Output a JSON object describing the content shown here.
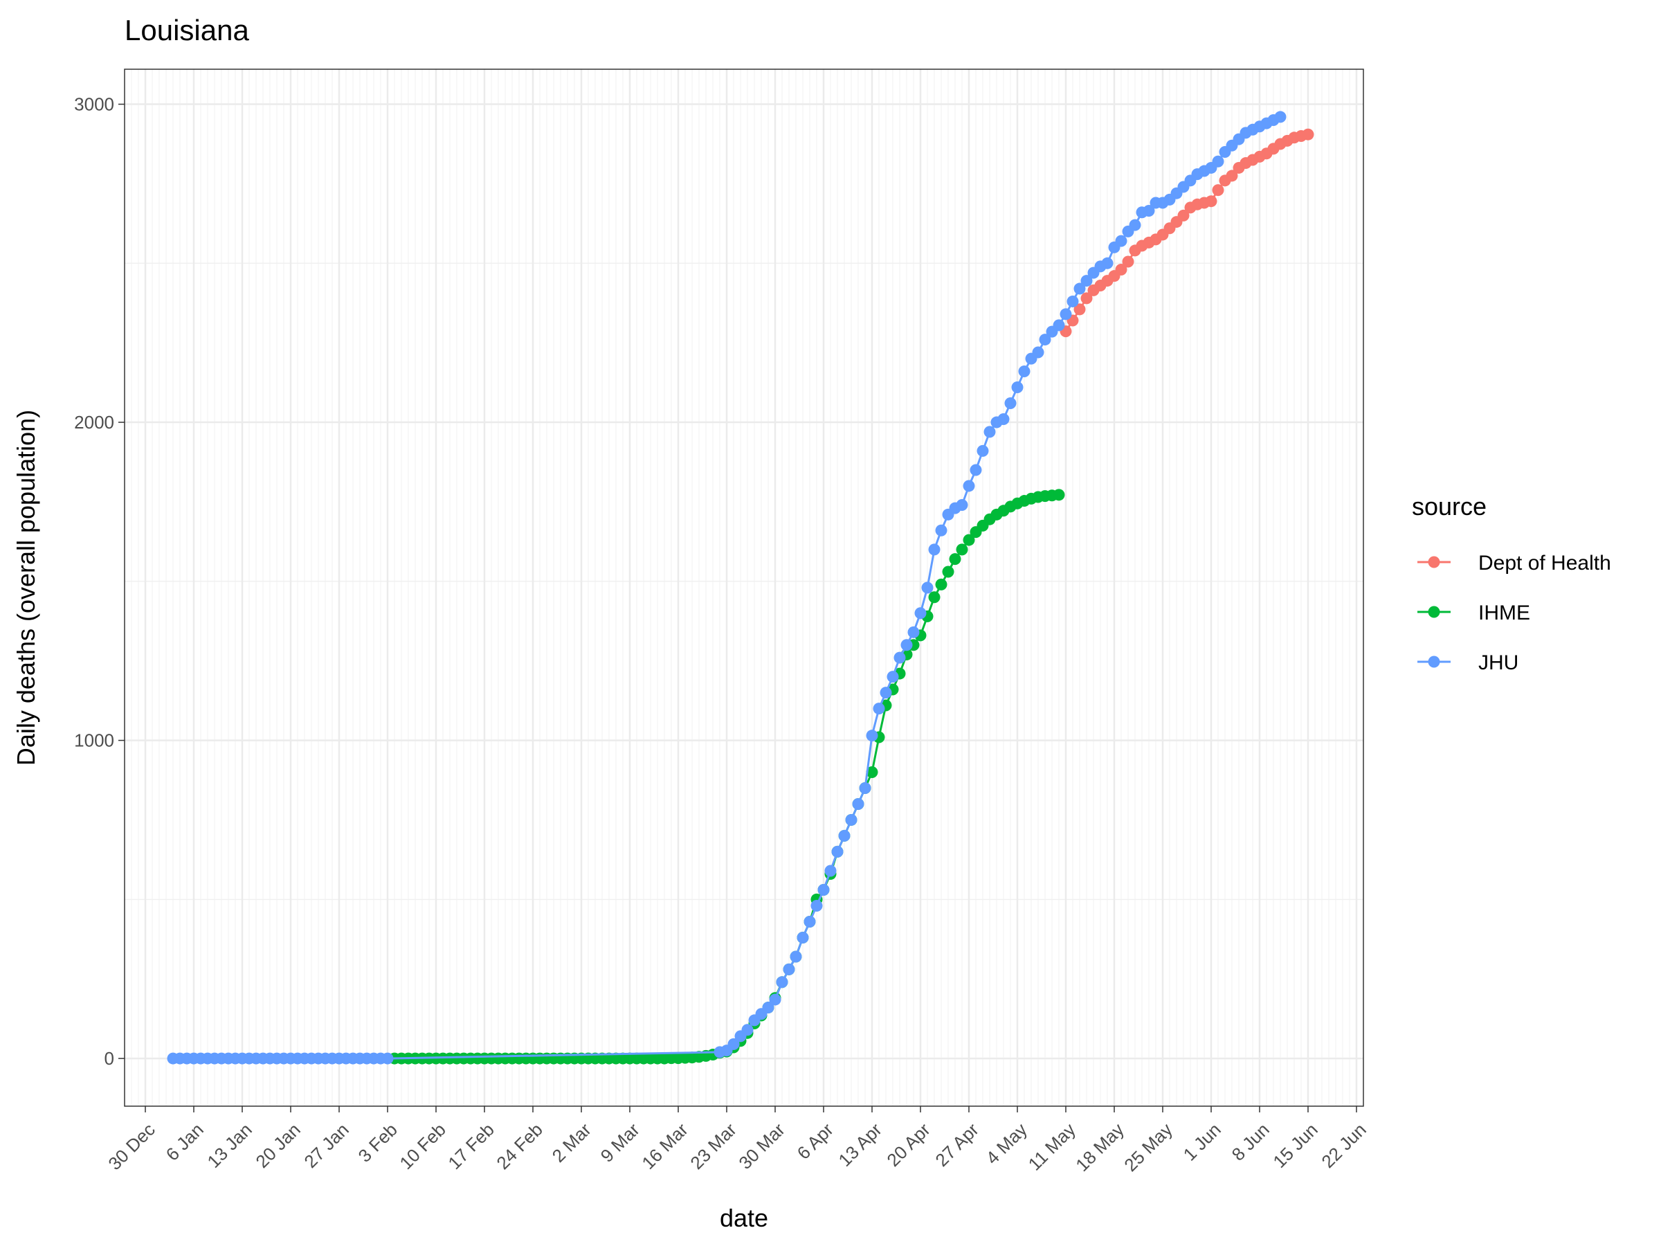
{
  "chart_data": {
    "type": "line",
    "title": "Louisiana",
    "xlabel": "date",
    "ylabel": "Daily deaths (overall population)",
    "x_tick_labels": [
      "30 Dec",
      "6 Jan",
      "13 Jan",
      "20 Jan",
      "27 Jan",
      "3 Feb",
      "10 Feb",
      "17 Feb",
      "24 Feb",
      "2 Mar",
      "9 Mar",
      "16 Mar",
      "23 Mar",
      "30 Mar",
      "6 Apr",
      "13 Apr",
      "20 Apr",
      "27 Apr",
      "4 May",
      "11 May",
      "18 May",
      "25 May",
      "1 Jun",
      "8 Jun",
      "15 Jun",
      "22 Jun"
    ],
    "x_tick_dates": [
      "2019-12-30",
      "2020-01-06",
      "2020-01-13",
      "2020-01-20",
      "2020-01-27",
      "2020-02-03",
      "2020-02-10",
      "2020-02-17",
      "2020-02-24",
      "2020-03-02",
      "2020-03-09",
      "2020-03-16",
      "2020-03-23",
      "2020-03-30",
      "2020-04-06",
      "2020-04-13",
      "2020-04-20",
      "2020-04-27",
      "2020-05-04",
      "2020-05-11",
      "2020-05-18",
      "2020-05-25",
      "2020-06-01",
      "2020-06-08",
      "2020-06-15",
      "2020-06-22"
    ],
    "xlim": [
      "2019-12-27",
      "2020-06-23"
    ],
    "y_ticks": [
      0,
      1000,
      2000,
      3000
    ],
    "ylim": [
      -150,
      3110
    ],
    "grid": true,
    "legend": {
      "title": "source",
      "position": "right"
    },
    "series": [
      {
        "name": "Dept of Health",
        "color": "#F8766D",
        "x": [
          "2020-05-11",
          "2020-05-12",
          "2020-05-13",
          "2020-05-14",
          "2020-05-15",
          "2020-05-16",
          "2020-05-17",
          "2020-05-18",
          "2020-05-19",
          "2020-05-20",
          "2020-05-21",
          "2020-05-22",
          "2020-05-23",
          "2020-05-24",
          "2020-05-25",
          "2020-05-26",
          "2020-05-27",
          "2020-05-28",
          "2020-05-29",
          "2020-05-30",
          "2020-05-31",
          "2020-06-01",
          "2020-06-02",
          "2020-06-03",
          "2020-06-04",
          "2020-06-05",
          "2020-06-06",
          "2020-06-07",
          "2020-06-08",
          "2020-06-09",
          "2020-06-10",
          "2020-06-11",
          "2020-06-12",
          "2020-06-13",
          "2020-06-14",
          "2020-06-15"
        ],
        "values": [
          2286,
          2320,
          2355,
          2390,
          2415,
          2430,
          2445,
          2460,
          2480,
          2505,
          2540,
          2555,
          2565,
          2575,
          2590,
          2610,
          2630,
          2650,
          2675,
          2685,
          2690,
          2695,
          2730,
          2760,
          2775,
          2800,
          2815,
          2825,
          2835,
          2845,
          2860,
          2875,
          2885,
          2895,
          2900,
          2905
        ]
      },
      {
        "name": "IHME",
        "color": "#00BA38",
        "x": [
          "2020-02-04",
          "2020-02-05",
          "2020-02-06",
          "2020-02-07",
          "2020-02-08",
          "2020-02-09",
          "2020-02-10",
          "2020-02-11",
          "2020-02-12",
          "2020-02-13",
          "2020-02-14",
          "2020-02-15",
          "2020-02-16",
          "2020-02-17",
          "2020-02-18",
          "2020-02-19",
          "2020-02-20",
          "2020-02-21",
          "2020-02-22",
          "2020-02-23",
          "2020-02-24",
          "2020-02-25",
          "2020-02-26",
          "2020-02-27",
          "2020-02-28",
          "2020-02-29",
          "2020-03-01",
          "2020-03-02",
          "2020-03-03",
          "2020-03-04",
          "2020-03-05",
          "2020-03-06",
          "2020-03-07",
          "2020-03-08",
          "2020-03-09",
          "2020-03-10",
          "2020-03-11",
          "2020-03-12",
          "2020-03-13",
          "2020-03-14",
          "2020-03-15",
          "2020-03-16",
          "2020-03-17",
          "2020-03-18",
          "2020-03-19",
          "2020-03-20",
          "2020-03-21",
          "2020-03-22",
          "2020-03-23",
          "2020-03-24",
          "2020-03-25",
          "2020-03-26",
          "2020-03-27",
          "2020-03-28",
          "2020-03-29",
          "2020-03-30",
          "2020-03-31",
          "2020-04-01",
          "2020-04-02",
          "2020-04-03",
          "2020-04-04",
          "2020-04-05",
          "2020-04-06",
          "2020-04-07",
          "2020-04-08",
          "2020-04-09",
          "2020-04-10",
          "2020-04-11",
          "2020-04-12",
          "2020-04-13",
          "2020-04-14",
          "2020-04-15",
          "2020-04-16",
          "2020-04-17",
          "2020-04-18",
          "2020-04-19",
          "2020-04-20",
          "2020-04-21",
          "2020-04-22",
          "2020-04-23",
          "2020-04-24",
          "2020-04-25",
          "2020-04-26",
          "2020-04-27",
          "2020-04-28",
          "2020-04-29",
          "2020-04-30",
          "2020-05-01",
          "2020-05-02",
          "2020-05-03",
          "2020-05-04",
          "2020-05-05",
          "2020-05-06",
          "2020-05-07",
          "2020-05-08",
          "2020-05-09",
          "2020-05-10"
        ],
        "values": [
          0,
          0,
          0,
          0,
          0,
          0,
          0,
          0,
          0,
          0,
          0,
          0,
          0,
          0,
          0,
          0,
          0,
          0,
          0,
          0,
          0,
          0,
          0,
          0,
          0,
          0,
          0,
          0,
          0,
          0,
          0,
          0,
          0,
          0,
          0,
          0,
          0,
          0,
          0,
          0,
          1,
          1,
          2,
          3,
          5,
          8,
          12,
          18,
          22,
          35,
          55,
          80,
          110,
          135,
          160,
          190,
          240,
          280,
          320,
          380,
          430,
          500,
          530,
          580,
          650,
          700,
          750,
          800,
          850,
          900,
          1010,
          1110,
          1160,
          1210,
          1270,
          1300,
          1330,
          1390,
          1450,
          1490,
          1530,
          1570,
          1600,
          1630,
          1655,
          1675,
          1695,
          1710,
          1722,
          1735,
          1745,
          1753,
          1760,
          1765,
          1768,
          1770,
          1772
        ]
      },
      {
        "name": "JHU",
        "color": "#619CFF",
        "x": [
          "2020-01-03",
          "2020-01-04",
          "2020-01-05",
          "2020-01-06",
          "2020-01-07",
          "2020-01-08",
          "2020-01-09",
          "2020-01-10",
          "2020-01-11",
          "2020-01-12",
          "2020-01-13",
          "2020-01-14",
          "2020-01-15",
          "2020-01-16",
          "2020-01-17",
          "2020-01-18",
          "2020-01-19",
          "2020-01-20",
          "2020-01-21",
          "2020-01-22",
          "2020-01-23",
          "2020-01-24",
          "2020-01-25",
          "2020-01-26",
          "2020-01-27",
          "2020-01-28",
          "2020-01-29",
          "2020-01-30",
          "2020-01-31",
          "2020-02-01",
          "2020-02-02",
          "2020-02-03",
          "2020-03-22",
          "2020-03-23",
          "2020-03-24",
          "2020-03-25",
          "2020-03-26",
          "2020-03-27",
          "2020-03-28",
          "2020-03-29",
          "2020-03-30",
          "2020-03-31",
          "2020-04-01",
          "2020-04-02",
          "2020-04-03",
          "2020-04-04",
          "2020-04-05",
          "2020-04-06",
          "2020-04-07",
          "2020-04-08",
          "2020-04-09",
          "2020-04-10",
          "2020-04-11",
          "2020-04-12",
          "2020-04-13",
          "2020-04-14",
          "2020-04-15",
          "2020-04-16",
          "2020-04-17",
          "2020-04-18",
          "2020-04-19",
          "2020-04-20",
          "2020-04-21",
          "2020-04-22",
          "2020-04-23",
          "2020-04-24",
          "2020-04-25",
          "2020-04-26",
          "2020-04-27",
          "2020-04-28",
          "2020-04-29",
          "2020-04-30",
          "2020-05-01",
          "2020-05-02",
          "2020-05-03",
          "2020-05-04",
          "2020-05-05",
          "2020-05-06",
          "2020-05-07",
          "2020-05-08",
          "2020-05-09",
          "2020-05-10",
          "2020-05-11",
          "2020-05-12",
          "2020-05-13",
          "2020-05-14",
          "2020-05-15",
          "2020-05-16",
          "2020-05-17",
          "2020-05-18",
          "2020-05-19",
          "2020-05-20",
          "2020-05-21",
          "2020-05-22",
          "2020-05-23",
          "2020-05-24",
          "2020-05-25",
          "2020-05-26",
          "2020-05-27",
          "2020-05-28",
          "2020-05-29",
          "2020-05-30",
          "2020-05-31",
          "2020-06-01",
          "2020-06-02",
          "2020-06-03",
          "2020-06-04",
          "2020-06-05",
          "2020-06-06",
          "2020-06-07",
          "2020-06-08",
          "2020-06-09",
          "2020-06-10",
          "2020-06-11"
        ],
        "values": [
          0,
          0,
          0,
          0,
          0,
          0,
          0,
          0,
          0,
          0,
          0,
          0,
          0,
          0,
          0,
          0,
          0,
          0,
          0,
          0,
          0,
          0,
          0,
          0,
          0,
          0,
          0,
          0,
          0,
          0,
          0,
          0,
          20,
          25,
          45,
          70,
          90,
          120,
          140,
          160,
          185,
          240,
          280,
          320,
          380,
          430,
          480,
          530,
          590,
          650,
          700,
          750,
          800,
          850,
          1015,
          1100,
          1150,
          1200,
          1260,
          1300,
          1340,
          1400,
          1480,
          1600,
          1660,
          1710,
          1730,
          1740,
          1800,
          1850,
          1910,
          1970,
          2000,
          2010,
          2060,
          2110,
          2160,
          2200,
          2220,
          2260,
          2285,
          2305,
          2340,
          2380,
          2420,
          2445,
          2470,
          2490,
          2500,
          2550,
          2570,
          2600,
          2620,
          2660,
          2665,
          2690,
          2690,
          2700,
          2720,
          2740,
          2760,
          2780,
          2790,
          2800,
          2820,
          2850,
          2870,
          2890,
          2910,
          2920,
          2930,
          2940,
          2950,
          2960
        ]
      }
    ]
  }
}
